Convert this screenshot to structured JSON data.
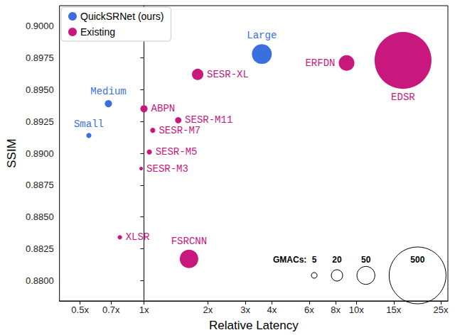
{
  "chart_data": {
    "type": "scatter",
    "x_label": "Relative Latency",
    "y_label": "SSIM",
    "log": "x",
    "grid": false,
    "legend": "upper left",
    "xlim": [
      0.4,
      27
    ],
    "xticks": [
      {
        "value": 0.5,
        "label": "0.5x"
      },
      {
        "value": 0.7,
        "label": "0.7x"
      },
      {
        "value": 1,
        "label": "1x"
      },
      {
        "value": 2,
        "label": "2x"
      },
      {
        "value": 3,
        "label": "3x"
      },
      {
        "value": 4,
        "label": "4x"
      },
      {
        "value": 6,
        "label": "6x"
      },
      {
        "value": 8,
        "label": "8x"
      },
      {
        "value": 10,
        "label": "10x"
      },
      {
        "value": 15,
        "label": "15x"
      },
      {
        "value": 25,
        "label": "25x"
      }
    ],
    "ylim": [
      0.8784,
      0.9016
    ],
    "yticks": [
      {
        "value": 0.88,
        "label": "0.8800"
      },
      {
        "value": 0.8825,
        "label": "0.8825"
      },
      {
        "value": 0.885,
        "label": "0.8850"
      },
      {
        "value": 0.8875,
        "label": "0.8875"
      },
      {
        "value": 0.89,
        "label": "0.8900"
      },
      {
        "value": 0.8925,
        "label": "0.8925"
      },
      {
        "value": 0.895,
        "label": "0.8950"
      },
      {
        "value": 0.8975,
        "label": "0.8975"
      },
      {
        "value": 0.9,
        "label": "0.9000"
      }
    ],
    "series": [
      {
        "name": "QuickSRNet (ours)",
        "color": "#3a6fe0",
        "labels": [
          "Small",
          "Medium",
          "Large"
        ],
        "x": [
          0.55,
          0.68,
          3.59
        ],
        "values": [
          0.8914,
          0.8939,
          0.8978
        ],
        "gmacs": [
          4,
          8,
          61
        ]
      },
      {
        "name": "Existing",
        "color": "#c8177d",
        "labels": [
          "SESR-XL",
          "ABPN",
          "SESR-M11",
          "SESR-M7",
          "SESR-M5",
          "SESR-M3",
          "XLSR",
          "FSRCNN",
          "ERFDN",
          "EDSR"
        ],
        "x": [
          1.79,
          1.0,
          1.45,
          1.1,
          1.06,
          0.97,
          0.77,
          1.63,
          9.0,
          16.6
        ],
        "values": [
          0.8962,
          0.8935,
          0.8926,
          0.8918,
          0.8901,
          0.8888,
          0.8834,
          0.8817,
          0.8971,
          0.8973
        ],
        "gmacs": [
          20,
          8,
          6,
          4,
          4,
          2,
          3,
          53,
          38,
          500
        ]
      }
    ],
    "size_legend": {
      "title": "GMACs:",
      "values": [
        5,
        20,
        50,
        500
      ]
    }
  }
}
